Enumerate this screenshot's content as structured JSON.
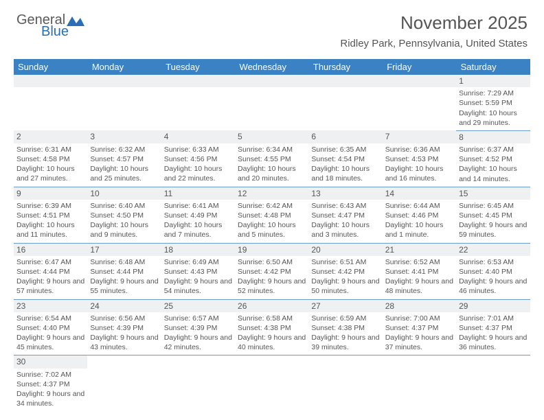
{
  "logo": {
    "text1": "General",
    "text2": "Blue"
  },
  "title": "November 2025",
  "location": "Ridley Park, Pennsylvania, United States",
  "header_bg": "#3b82c4",
  "header_text_color": "#ffffff",
  "daynum_bg": "#eef0f2",
  "border_color": "#6a9bd1",
  "weekdays": [
    "Sunday",
    "Monday",
    "Tuesday",
    "Wednesday",
    "Thursday",
    "Friday",
    "Saturday"
  ],
  "weeks": [
    [
      null,
      null,
      null,
      null,
      null,
      null,
      {
        "n": "1",
        "sunrise": "Sunrise: 7:29 AM",
        "sunset": "Sunset: 5:59 PM",
        "daylight": "Daylight: 10 hours and 29 minutes."
      }
    ],
    [
      {
        "n": "2",
        "sunrise": "Sunrise: 6:31 AM",
        "sunset": "Sunset: 4:58 PM",
        "daylight": "Daylight: 10 hours and 27 minutes."
      },
      {
        "n": "3",
        "sunrise": "Sunrise: 6:32 AM",
        "sunset": "Sunset: 4:57 PM",
        "daylight": "Daylight: 10 hours and 25 minutes."
      },
      {
        "n": "4",
        "sunrise": "Sunrise: 6:33 AM",
        "sunset": "Sunset: 4:56 PM",
        "daylight": "Daylight: 10 hours and 22 minutes."
      },
      {
        "n": "5",
        "sunrise": "Sunrise: 6:34 AM",
        "sunset": "Sunset: 4:55 PM",
        "daylight": "Daylight: 10 hours and 20 minutes."
      },
      {
        "n": "6",
        "sunrise": "Sunrise: 6:35 AM",
        "sunset": "Sunset: 4:54 PM",
        "daylight": "Daylight: 10 hours and 18 minutes."
      },
      {
        "n": "7",
        "sunrise": "Sunrise: 6:36 AM",
        "sunset": "Sunset: 4:53 PM",
        "daylight": "Daylight: 10 hours and 16 minutes."
      },
      {
        "n": "8",
        "sunrise": "Sunrise: 6:37 AM",
        "sunset": "Sunset: 4:52 PM",
        "daylight": "Daylight: 10 hours and 14 minutes."
      }
    ],
    [
      {
        "n": "9",
        "sunrise": "Sunrise: 6:39 AM",
        "sunset": "Sunset: 4:51 PM",
        "daylight": "Daylight: 10 hours and 11 minutes."
      },
      {
        "n": "10",
        "sunrise": "Sunrise: 6:40 AM",
        "sunset": "Sunset: 4:50 PM",
        "daylight": "Daylight: 10 hours and 9 minutes."
      },
      {
        "n": "11",
        "sunrise": "Sunrise: 6:41 AM",
        "sunset": "Sunset: 4:49 PM",
        "daylight": "Daylight: 10 hours and 7 minutes."
      },
      {
        "n": "12",
        "sunrise": "Sunrise: 6:42 AM",
        "sunset": "Sunset: 4:48 PM",
        "daylight": "Daylight: 10 hours and 5 minutes."
      },
      {
        "n": "13",
        "sunrise": "Sunrise: 6:43 AM",
        "sunset": "Sunset: 4:47 PM",
        "daylight": "Daylight: 10 hours and 3 minutes."
      },
      {
        "n": "14",
        "sunrise": "Sunrise: 6:44 AM",
        "sunset": "Sunset: 4:46 PM",
        "daylight": "Daylight: 10 hours and 1 minute."
      },
      {
        "n": "15",
        "sunrise": "Sunrise: 6:45 AM",
        "sunset": "Sunset: 4:45 PM",
        "daylight": "Daylight: 9 hours and 59 minutes."
      }
    ],
    [
      {
        "n": "16",
        "sunrise": "Sunrise: 6:47 AM",
        "sunset": "Sunset: 4:44 PM",
        "daylight": "Daylight: 9 hours and 57 minutes."
      },
      {
        "n": "17",
        "sunrise": "Sunrise: 6:48 AM",
        "sunset": "Sunset: 4:44 PM",
        "daylight": "Daylight: 9 hours and 55 minutes."
      },
      {
        "n": "18",
        "sunrise": "Sunrise: 6:49 AM",
        "sunset": "Sunset: 4:43 PM",
        "daylight": "Daylight: 9 hours and 54 minutes."
      },
      {
        "n": "19",
        "sunrise": "Sunrise: 6:50 AM",
        "sunset": "Sunset: 4:42 PM",
        "daylight": "Daylight: 9 hours and 52 minutes."
      },
      {
        "n": "20",
        "sunrise": "Sunrise: 6:51 AM",
        "sunset": "Sunset: 4:42 PM",
        "daylight": "Daylight: 9 hours and 50 minutes."
      },
      {
        "n": "21",
        "sunrise": "Sunrise: 6:52 AM",
        "sunset": "Sunset: 4:41 PM",
        "daylight": "Daylight: 9 hours and 48 minutes."
      },
      {
        "n": "22",
        "sunrise": "Sunrise: 6:53 AM",
        "sunset": "Sunset: 4:40 PM",
        "daylight": "Daylight: 9 hours and 46 minutes."
      }
    ],
    [
      {
        "n": "23",
        "sunrise": "Sunrise: 6:54 AM",
        "sunset": "Sunset: 4:40 PM",
        "daylight": "Daylight: 9 hours and 45 minutes."
      },
      {
        "n": "24",
        "sunrise": "Sunrise: 6:56 AM",
        "sunset": "Sunset: 4:39 PM",
        "daylight": "Daylight: 9 hours and 43 minutes."
      },
      {
        "n": "25",
        "sunrise": "Sunrise: 6:57 AM",
        "sunset": "Sunset: 4:39 PM",
        "daylight": "Daylight: 9 hours and 42 minutes."
      },
      {
        "n": "26",
        "sunrise": "Sunrise: 6:58 AM",
        "sunset": "Sunset: 4:38 PM",
        "daylight": "Daylight: 9 hours and 40 minutes."
      },
      {
        "n": "27",
        "sunrise": "Sunrise: 6:59 AM",
        "sunset": "Sunset: 4:38 PM",
        "daylight": "Daylight: 9 hours and 39 minutes."
      },
      {
        "n": "28",
        "sunrise": "Sunrise: 7:00 AM",
        "sunset": "Sunset: 4:37 PM",
        "daylight": "Daylight: 9 hours and 37 minutes."
      },
      {
        "n": "29",
        "sunrise": "Sunrise: 7:01 AM",
        "sunset": "Sunset: 4:37 PM",
        "daylight": "Daylight: 9 hours and 36 minutes."
      }
    ],
    [
      {
        "n": "30",
        "sunrise": "Sunrise: 7:02 AM",
        "sunset": "Sunset: 4:37 PM",
        "daylight": "Daylight: 9 hours and 34 minutes."
      },
      null,
      null,
      null,
      null,
      null,
      null
    ]
  ]
}
